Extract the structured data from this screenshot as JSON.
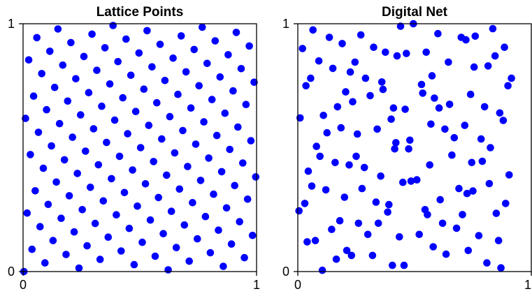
{
  "colors": {
    "marker": "#0000ff",
    "axis": "#000000",
    "background": "#ffffff"
  },
  "chart_data": [
    {
      "type": "scatter",
      "title": "Lattice Points",
      "xlabel": "",
      "ylabel": "",
      "xlim": [
        0,
        1
      ],
      "ylim": [
        0,
        1
      ],
      "xticks": [
        "0",
        "1"
      ],
      "yticks": [
        "0",
        "1"
      ],
      "grid": false,
      "n_points": 144,
      "generator": [
        1,
        89
      ],
      "series": [
        {
          "points": [
            [
              0.0035,
              0.0
            ],
            [
              0.0104,
              0.618
            ],
            [
              0.0174,
              0.236
            ],
            [
              0.0243,
              0.854
            ],
            [
              0.0312,
              0.472
            ],
            [
              0.0382,
              0.09
            ],
            [
              0.0451,
              0.708
            ],
            [
              0.0521,
              0.326
            ],
            [
              0.059,
              0.944
            ],
            [
              0.066,
              0.562
            ],
            [
              0.0729,
              0.181
            ],
            [
              0.0799,
              0.799
            ],
            [
              0.0868,
              0.417
            ],
            [
              0.0938,
              0.035
            ],
            [
              0.1007,
              0.653
            ],
            [
              0.1076,
              0.271
            ],
            [
              0.1146,
              0.889
            ],
            [
              0.1215,
              0.507
            ],
            [
              0.1285,
              0.125
            ],
            [
              0.1354,
              0.743
            ],
            [
              0.1424,
              0.361
            ],
            [
              0.1493,
              0.979
            ],
            [
              0.1562,
              0.597
            ],
            [
              0.1632,
              0.215
            ],
            [
              0.1701,
              0.833
            ],
            [
              0.1771,
              0.451
            ],
            [
              0.184,
              0.069
            ],
            [
              0.191,
              0.688
            ],
            [
              0.1979,
              0.306
            ],
            [
              0.2049,
              0.924
            ],
            [
              0.2118,
              0.542
            ],
            [
              0.2188,
              0.16
            ],
            [
              0.2257,
              0.778
            ],
            [
              0.2326,
              0.396
            ],
            [
              0.2396,
              0.014
            ],
            [
              0.2465,
              0.632
            ],
            [
              0.2535,
              0.25
            ],
            [
              0.2604,
              0.868
            ],
            [
              0.2674,
              0.486
            ],
            [
              0.2743,
              0.104
            ],
            [
              0.2812,
              0.722
            ],
            [
              0.2882,
              0.34
            ],
            [
              0.2951,
              0.958
            ],
            [
              0.3021,
              0.576
            ],
            [
              0.309,
              0.194
            ],
            [
              0.316,
              0.812
            ],
            [
              0.3229,
              0.431
            ],
            [
              0.3299,
              0.049
            ],
            [
              0.3368,
              0.667
            ],
            [
              0.3438,
              0.285
            ],
            [
              0.3507,
              0.903
            ],
            [
              0.3576,
              0.521
            ],
            [
              0.3646,
              0.139
            ],
            [
              0.3715,
              0.757
            ],
            [
              0.3785,
              0.375
            ],
            [
              0.3854,
              0.993
            ],
            [
              0.3924,
              0.611
            ],
            [
              0.3993,
              0.229
            ],
            [
              0.4062,
              0.847
            ],
            [
              0.4132,
              0.465
            ],
            [
              0.4201,
              0.083
            ],
            [
              0.4271,
              0.701
            ],
            [
              0.434,
              0.319
            ],
            [
              0.441,
              0.938
            ],
            [
              0.4479,
              0.556
            ],
            [
              0.4549,
              0.174
            ],
            [
              0.4618,
              0.792
            ],
            [
              0.4688,
              0.41
            ],
            [
              0.4757,
              0.028
            ],
            [
              0.4826,
              0.646
            ],
            [
              0.4896,
              0.264
            ],
            [
              0.4965,
              0.882
            ],
            [
              0.5035,
              0.5
            ],
            [
              0.5104,
              0.118
            ],
            [
              0.5174,
              0.736
            ],
            [
              0.5243,
              0.354
            ],
            [
              0.5312,
              0.972
            ],
            [
              0.5382,
              0.59
            ],
            [
              0.5451,
              0.208
            ],
            [
              0.5521,
              0.826
            ],
            [
              0.559,
              0.444
            ],
            [
              0.566,
              0.062
            ],
            [
              0.5729,
              0.681
            ],
            [
              0.5799,
              0.299
            ],
            [
              0.5868,
              0.917
            ],
            [
              0.5938,
              0.535
            ],
            [
              0.6007,
              0.153
            ],
            [
              0.6076,
              0.771
            ],
            [
              0.6146,
              0.389
            ],
            [
              0.6215,
              0.007
            ],
            [
              0.6285,
              0.625
            ],
            [
              0.6354,
              0.243
            ],
            [
              0.6424,
              0.861
            ],
            [
              0.6493,
              0.479
            ],
            [
              0.6562,
              0.097
            ],
            [
              0.6632,
              0.715
            ],
            [
              0.6701,
              0.333
            ],
            [
              0.6771,
              0.951
            ],
            [
              0.684,
              0.569
            ],
            [
              0.691,
              0.188
            ],
            [
              0.6979,
              0.806
            ],
            [
              0.7049,
              0.424
            ],
            [
              0.7118,
              0.042
            ],
            [
              0.7188,
              0.66
            ],
            [
              0.7257,
              0.278
            ],
            [
              0.7326,
              0.896
            ],
            [
              0.7396,
              0.514
            ],
            [
              0.7465,
              0.132
            ],
            [
              0.7535,
              0.75
            ],
            [
              0.7604,
              0.368
            ],
            [
              0.7674,
              0.986
            ],
            [
              0.7743,
              0.604
            ],
            [
              0.7812,
              0.222
            ],
            [
              0.7882,
              0.84
            ],
            [
              0.7951,
              0.458
            ],
            [
              0.8021,
              0.076
            ],
            [
              0.809,
              0.694
            ],
            [
              0.816,
              0.312
            ],
            [
              0.8229,
              0.931
            ],
            [
              0.8299,
              0.549
            ],
            [
              0.8368,
              0.167
            ],
            [
              0.8438,
              0.785
            ],
            [
              0.8507,
              0.403
            ],
            [
              0.8576,
              0.021
            ],
            [
              0.8646,
              0.639
            ],
            [
              0.8715,
              0.257
            ],
            [
              0.8785,
              0.875
            ],
            [
              0.8854,
              0.493
            ],
            [
              0.8924,
              0.111
            ],
            [
              0.8993,
              0.729
            ],
            [
              0.9062,
              0.347
            ],
            [
              0.9132,
              0.965
            ],
            [
              0.9201,
              0.583
            ],
            [
              0.9271,
              0.201
            ],
            [
              0.934,
              0.819
            ],
            [
              0.941,
              0.438
            ],
            [
              0.9479,
              0.056
            ],
            [
              0.9549,
              0.674
            ],
            [
              0.9618,
              0.292
            ],
            [
              0.9688,
              0.91
            ],
            [
              0.9757,
              0.528
            ],
            [
              0.9826,
              0.146
            ],
            [
              0.9896,
              0.764
            ],
            [
              0.9965,
              0.382
            ]
          ]
        }
      ]
    },
    {
      "type": "scatter",
      "title": "Digital Net",
      "xlabel": "",
      "ylabel": "",
      "xlim": [
        0,
        1
      ],
      "ylim": [
        0,
        1
      ],
      "xticks": [
        "0",
        "1"
      ],
      "yticks": [
        "0",
        "1"
      ],
      "grid": false,
      "series": [
        {
          "points": [
            [
              0.005,
              0.245
            ],
            [
              0.01,
              0.62
            ],
            [
              0.02,
              0.9
            ],
            [
              0.03,
              0.275
            ],
            [
              0.035,
              0.75
            ],
            [
              0.04,
              0.12
            ],
            [
              0.045,
              0.405
            ],
            [
              0.055,
              0.78
            ],
            [
              0.06,
              0.345
            ],
            [
              0.065,
              0.975
            ],
            [
              0.075,
              0.125
            ],
            [
              0.08,
              0.505
            ],
            [
              0.09,
              0.85
            ],
            [
              0.095,
              0.465
            ],
            [
              0.105,
              0.005
            ],
            [
              0.11,
              0.63
            ],
            [
              0.12,
              0.33
            ],
            [
              0.125,
              0.56
            ],
            [
              0.135,
              0.945
            ],
            [
              0.145,
              0.17
            ],
            [
              0.15,
              0.82
            ],
            [
              0.16,
              0.44
            ],
            [
              0.165,
              0.05
            ],
            [
              0.17,
              0.665
            ],
            [
              0.18,
              0.205
            ],
            [
              0.185,
              0.58
            ],
            [
              0.19,
              0.92
            ],
            [
              0.2,
              0.3
            ],
            [
              0.205,
              0.725
            ],
            [
              0.21,
              0.085
            ],
            [
              0.22,
              0.43
            ],
            [
              0.225,
              0.805
            ],
            [
              0.23,
              0.065
            ],
            [
              0.235,
              0.685
            ],
            [
              0.245,
              0.845
            ],
            [
              0.25,
              0.465
            ],
            [
              0.255,
              0.555
            ],
            [
              0.26,
              0.195
            ],
            [
              0.27,
              0.955
            ],
            [
              0.275,
              0.335
            ],
            [
              0.285,
              0.42
            ],
            [
              0.29,
              0.78
            ],
            [
              0.3,
              0.15
            ],
            [
              0.31,
              0.71
            ],
            [
              0.32,
              0.065
            ],
            [
              0.325,
              0.905
            ],
            [
              0.335,
              0.28
            ],
            [
              0.34,
              0.575
            ],
            [
              0.345,
              0.195
            ],
            [
              0.355,
              0.385
            ],
            [
              0.36,
              0.765
            ],
            [
              0.365,
              0.735
            ],
            [
              0.375,
              0.885
            ],
            [
              0.385,
              0.24
            ],
            [
              0.39,
              0.27
            ],
            [
              0.4,
              0.615
            ],
            [
              0.405,
              0.025
            ],
            [
              0.41,
              0.66
            ],
            [
              0.415,
              0.495
            ],
            [
              0.42,
              0.52
            ],
            [
              0.425,
              0.87
            ],
            [
              0.435,
              0.14
            ],
            [
              0.44,
              0.99
            ],
            [
              0.45,
              0.36
            ],
            [
              0.455,
              0.025
            ],
            [
              0.46,
              0.655
            ],
            [
              0.465,
              0.88
            ],
            [
              0.475,
              0.495
            ],
            [
              0.48,
              0.53
            ],
            [
              0.485,
              0.365
            ],
            [
              0.495,
              1.0
            ],
            [
              0.51,
              0.37
            ],
            [
              0.52,
              0.15
            ],
            [
              0.53,
              0.755
            ],
            [
              0.535,
              0.72
            ],
            [
              0.545,
              0.25
            ],
            [
              0.55,
              0.885
            ],
            [
              0.555,
              0.23
            ],
            [
              0.565,
              0.43
            ],
            [
              0.57,
              0.595
            ],
            [
              0.575,
              0.79
            ],
            [
              0.58,
              0.1
            ],
            [
              0.585,
              0.7
            ],
            [
              0.6,
              0.96
            ],
            [
              0.605,
              0.66
            ],
            [
              0.61,
              0.29
            ],
            [
              0.62,
              0.195
            ],
            [
              0.63,
              0.575
            ],
            [
              0.635,
              0.07
            ],
            [
              0.645,
              0.845
            ],
            [
              0.65,
              0.675
            ],
            [
              0.66,
              0.47
            ],
            [
              0.67,
              0.54
            ],
            [
              0.68,
              0.175
            ],
            [
              0.69,
              0.335
            ],
            [
              0.7,
              0.945
            ],
            [
              0.705,
              0.23
            ],
            [
              0.715,
              0.59
            ],
            [
              0.72,
              0.935
            ],
            [
              0.725,
              0.315
            ],
            [
              0.73,
              0.085
            ],
            [
              0.74,
              0.715
            ],
            [
              0.745,
              0.44
            ],
            [
              0.75,
              0.325
            ],
            [
              0.755,
              0.825
            ],
            [
              0.76,
              0.95
            ],
            [
              0.775,
              0.145
            ],
            [
              0.785,
              0.535
            ],
            [
              0.79,
              0.445
            ],
            [
              0.8,
              0.665
            ],
            [
              0.81,
              0.035
            ],
            [
              0.815,
              0.83
            ],
            [
              0.82,
              0.355
            ],
            [
              0.825,
              0.5
            ],
            [
              0.835,
              0.98
            ],
            [
              0.845,
              0.87
            ],
            [
              0.85,
              0.235
            ],
            [
              0.86,
              0.125
            ],
            [
              0.865,
              0.64
            ],
            [
              0.87,
              0.015
            ],
            [
              0.88,
              0.61
            ],
            [
              0.885,
              0.905
            ],
            [
              0.89,
              0.275
            ],
            [
              0.9,
              0.75
            ],
            [
              0.905,
              0.39
            ],
            [
              0.915,
              0.78
            ]
          ]
        }
      ]
    }
  ]
}
